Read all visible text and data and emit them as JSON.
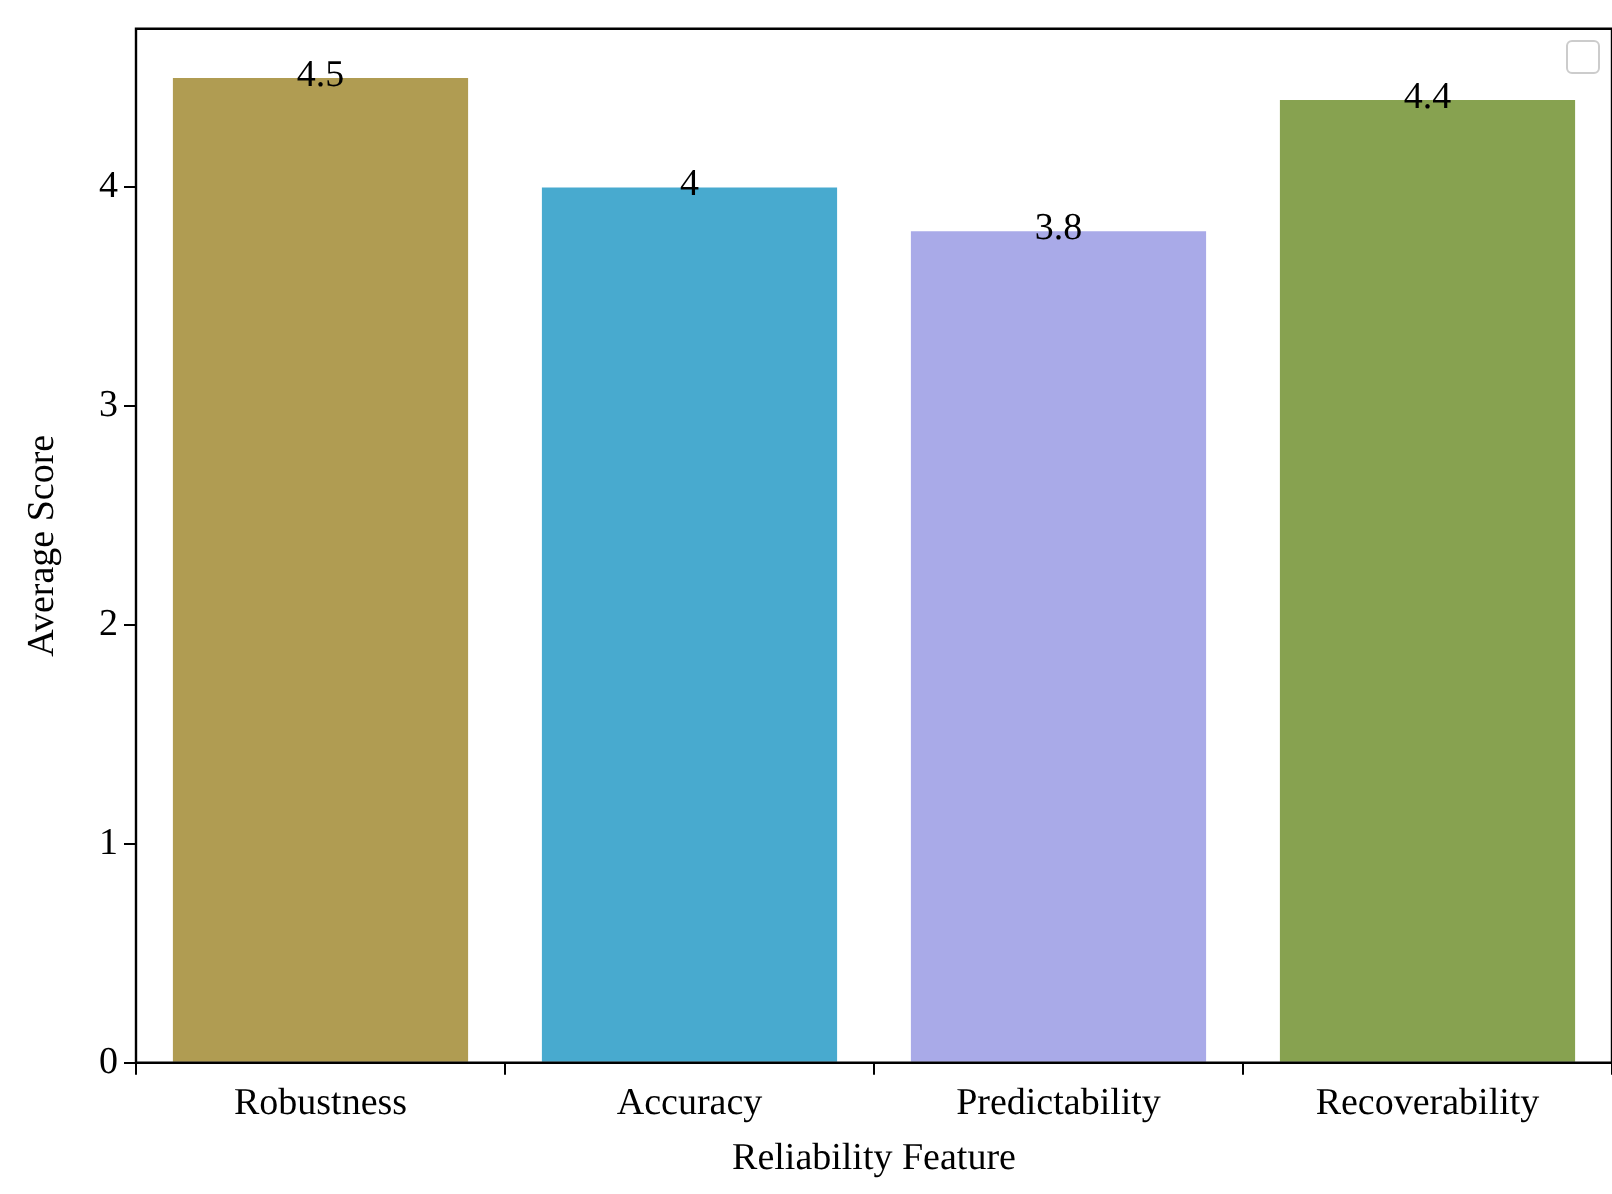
{
  "chart_data": {
    "type": "bar",
    "xlabel": "Reliability Feature",
    "ylabel": "Average Score",
    "categories": [
      "Robustness",
      "Accuracy",
      "Predictability",
      "Recoverability"
    ],
    "values": [
      4.5,
      4,
      3.8,
      4.4
    ],
    "colors": [
      "#b09c52",
      "#48aacf",
      "#a9aae8",
      "#87a250"
    ],
    "ylim": [
      0,
      4.725
    ],
    "yticks": [
      0,
      1,
      2,
      3,
      4
    ],
    "data_labels": true
  }
}
